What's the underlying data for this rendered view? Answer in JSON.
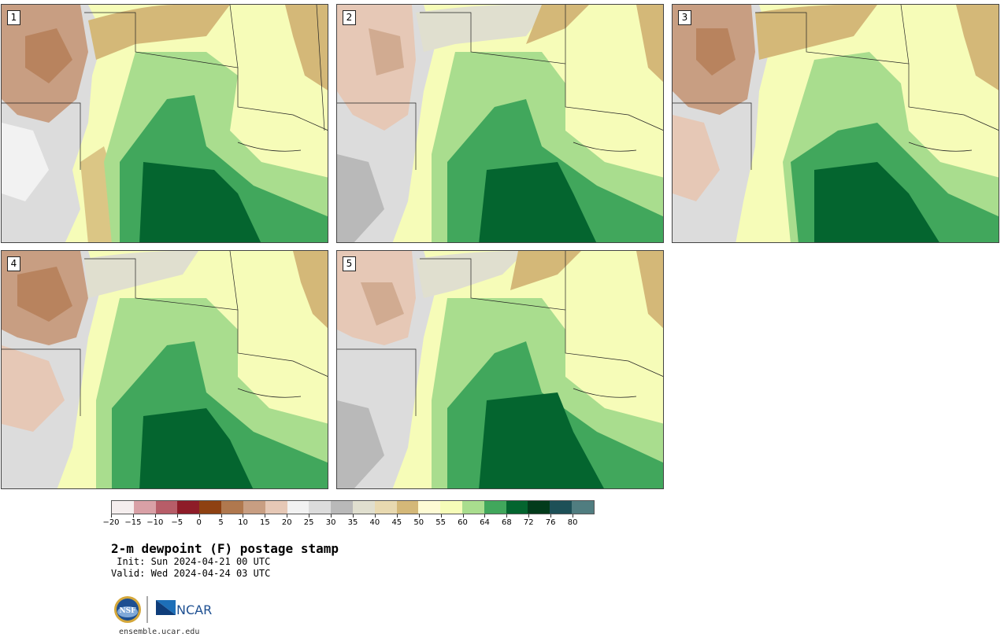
{
  "panels": [
    {
      "label": "1"
    },
    {
      "label": "2"
    },
    {
      "label": "3"
    },
    {
      "label": "4"
    },
    {
      "label": "5"
    }
  ],
  "colorbar": {
    "colors": [
      "#f5eeee",
      "#d9a0a6",
      "#b75d68",
      "#8e1c28",
      "#8e4112",
      "#b0784e",
      "#c89e82",
      "#e6c8b6",
      "#f2f2f2",
      "#dcdcdc",
      "#b9b9b9",
      "#e0dfcf",
      "#e8d9b0",
      "#d4b878",
      "#fefbd4",
      "#f6fcb8",
      "#a9dd8e",
      "#41a75c",
      "#04652f",
      "#023b1b",
      "#1d5057",
      "#507d80"
    ],
    "ticks": [
      "−20",
      "−15",
      "−10",
      "−5",
      "0",
      "5",
      "10",
      "15",
      "20",
      "25",
      "30",
      "35",
      "40",
      "45",
      "50",
      "55",
      "60",
      "64",
      "68",
      "72",
      "76",
      "80"
    ]
  },
  "title": "2-m dewpoint (F) postage stamp",
  "init": " Init: Sun 2024-04-21 00 UTC",
  "valid": "Valid: Wed 2024-04-24 03 UTC",
  "logos": {
    "nsf": "NSF",
    "ncar": "NCAR"
  },
  "site": "ensemble.ucar.edu"
}
